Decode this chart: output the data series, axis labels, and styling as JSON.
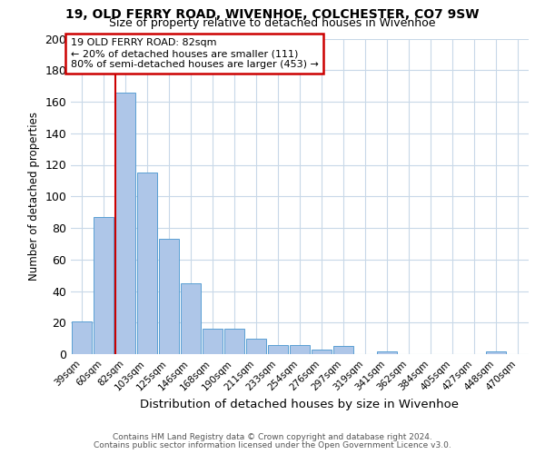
{
  "title": "19, OLD FERRY ROAD, WIVENHOE, COLCHESTER, CO7 9SW",
  "subtitle": "Size of property relative to detached houses in Wivenhoe",
  "xlabel": "Distribution of detached houses by size in Wivenhoe",
  "ylabel": "Number of detached properties",
  "bar_labels": [
    "39sqm",
    "60sqm",
    "82sqm",
    "103sqm",
    "125sqm",
    "146sqm",
    "168sqm",
    "190sqm",
    "211sqm",
    "233sqm",
    "254sqm",
    "276sqm",
    "297sqm",
    "319sqm",
    "341sqm",
    "362sqm",
    "384sqm",
    "405sqm",
    "427sqm",
    "448sqm",
    "470sqm"
  ],
  "bar_values": [
    21,
    87,
    166,
    115,
    73,
    45,
    16,
    16,
    10,
    6,
    6,
    3,
    5,
    0,
    2,
    0,
    0,
    0,
    0,
    2,
    0
  ],
  "bar_color": "#aec6e8",
  "bar_edge_color": "#5a9fd4",
  "property_line_index": 2,
  "property_line_color": "#cc0000",
  "ylim": [
    0,
    200
  ],
  "yticks": [
    0,
    20,
    40,
    60,
    80,
    100,
    120,
    140,
    160,
    180,
    200
  ],
  "annotation_title": "19 OLD FERRY ROAD: 82sqm",
  "annotation_line1": "← 20% of detached houses are smaller (111)",
  "annotation_line2": "80% of semi-detached houses are larger (453) →",
  "annotation_box_color": "#cc0000",
  "footer_line1": "Contains HM Land Registry data © Crown copyright and database right 2024.",
  "footer_line2": "Contains public sector information licensed under the Open Government Licence v3.0.",
  "background_color": "#ffffff",
  "grid_color": "#c8d8e8"
}
